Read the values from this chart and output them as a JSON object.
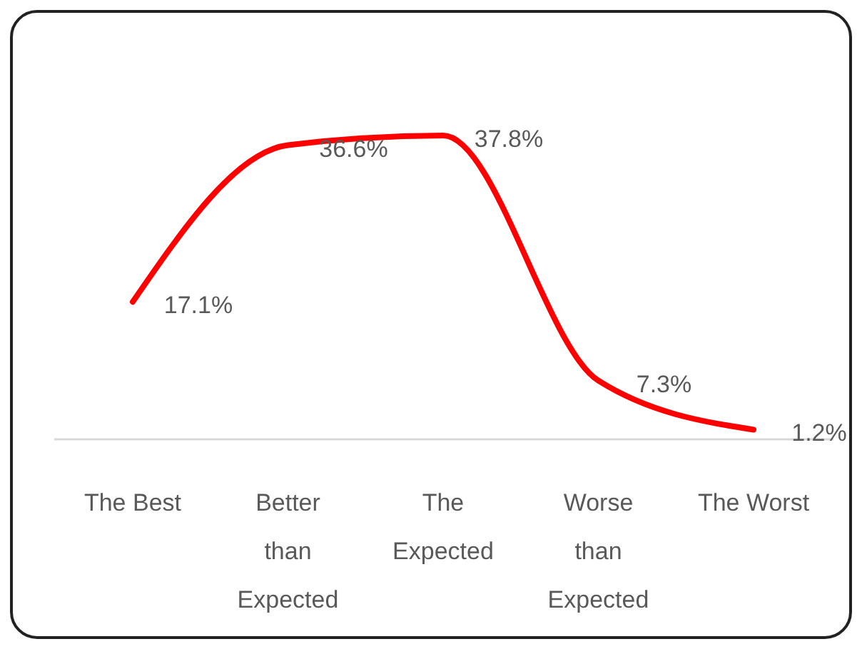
{
  "chart_data": {
    "type": "line",
    "categories": [
      "The Best",
      "Better than Expected",
      "The Expected",
      "Worse than Expected",
      "The Worst"
    ],
    "series": [
      {
        "color": "#ff0000",
        "values": [
          17.1,
          36.6,
          37.8,
          7.3,
          1.2
        ],
        "value_labels": [
          "17.1%",
          "36.6%",
          "37.8%",
          "7.3%",
          "1.2%"
        ]
      }
    ],
    "marker": "none",
    "line_style": "solid"
  }
}
